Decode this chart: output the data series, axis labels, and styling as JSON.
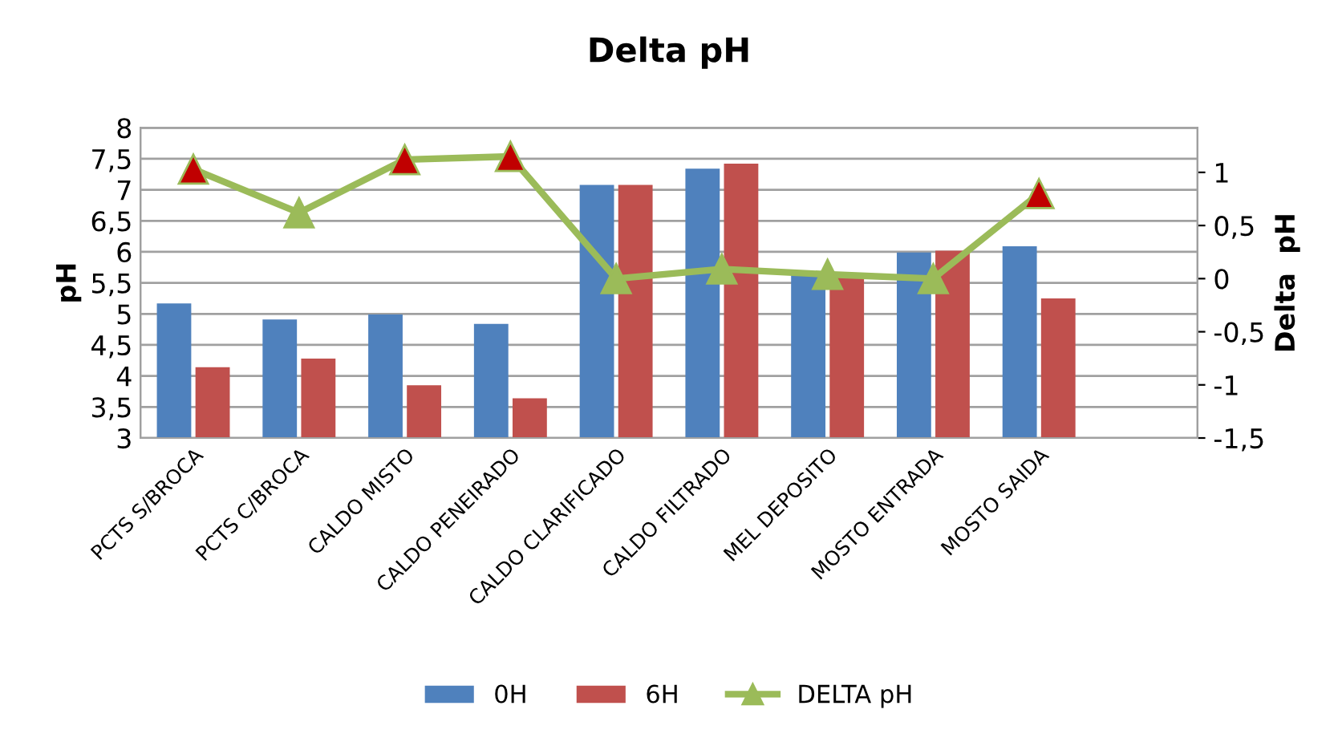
{
  "chart_data": {
    "type": "bar",
    "title": "Delta pH",
    "ylabel": "pH",
    "y2label": "Delta  pH",
    "categories": [
      "PCTS S/BROCA",
      "PCTS C/BROCA",
      "CALDO MISTO",
      "CALDO PENEIRADO",
      "CALDO CLARIFICADO",
      "CALDO FILTRADO",
      "MEL DEPOSITO",
      "MOSTO ENTRADA",
      "MOSTO SAIDA",
      null
    ],
    "series": [
      {
        "name": "0H",
        "color": "#4f81bd",
        "values": [
          5.17,
          4.91,
          4.99,
          4.84,
          7.08,
          7.34,
          5.67,
          5.99,
          6.09,
          null
        ]
      },
      {
        "name": "6H",
        "color": "#c0504d",
        "values": [
          4.14,
          4.28,
          3.85,
          3.64,
          7.08,
          7.42,
          5.63,
          6.02,
          5.25,
          null
        ]
      },
      {
        "name": "DELTA pH",
        "type": "line",
        "axis": "y2",
        "color": "#9bbb59",
        "marker": "triangle",
        "colors": [
          "#c00000",
          "#9bbb59",
          "#c00000",
          "#c00000",
          "#9bbb59",
          "#9bbb59",
          "#9bbb59",
          "#9bbb59",
          "#c00000",
          null
        ],
        "values": [
          1.03,
          0.62,
          1.12,
          1.15,
          0.0,
          0.09,
          0.04,
          0.0,
          0.8,
          null
        ]
      }
    ],
    "ylim": [
      3,
      8
    ],
    "yticks": [
      3,
      {
        "value": 3.5,
        "label": "3,5"
      },
      4,
      {
        "value": 4.5,
        "label": "4,5"
      },
      5,
      {
        "value": 5.5,
        "label": "5,5"
      },
      6,
      {
        "value": 6.5,
        "label": "6,5"
      },
      7,
      {
        "value": 7.5,
        "label": "7,5"
      },
      8
    ],
    "y2lim": [
      -1.5,
      1.42
    ],
    "y2ticks": [
      {
        "value": -1.5,
        "label": "-1,5"
      },
      -1,
      {
        "value": -0.5,
        "label": "-0,5"
      },
      0,
      {
        "value": 0.5,
        "label": "0,5"
      },
      1
    ],
    "grid": "y",
    "legend": "bottom"
  }
}
